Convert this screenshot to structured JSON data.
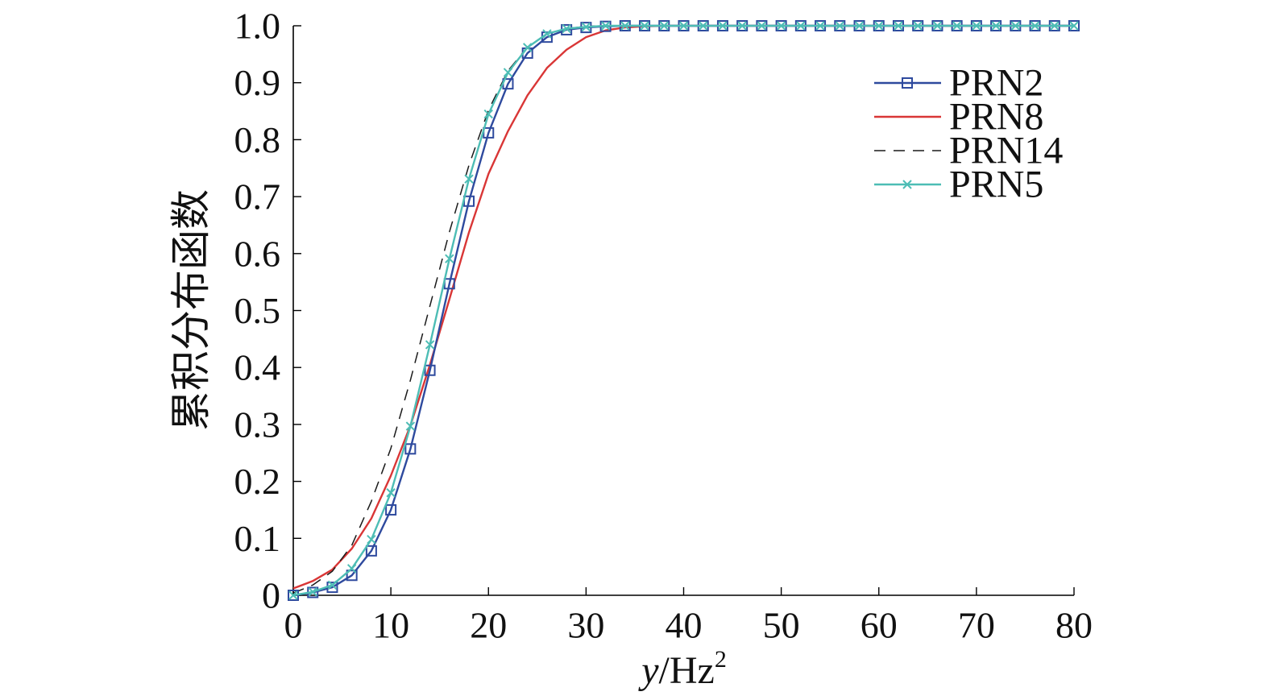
{
  "chart_data": {
    "type": "line",
    "title": "",
    "xlabel": {
      "variable": "y",
      "unit": "/Hz",
      "exponent": "2"
    },
    "ylabel": "累积分布函数",
    "xlim": [
      0,
      80
    ],
    "ylim": [
      0,
      1
    ],
    "grid": false,
    "xticks": [
      0,
      10,
      20,
      30,
      40,
      50,
      60,
      70,
      80
    ],
    "xtick_labels": [
      "0",
      "10",
      "20",
      "30",
      "40",
      "50",
      "60",
      "70",
      "80"
    ],
    "yticks": [
      0,
      0.1,
      0.2,
      0.3,
      0.4,
      0.5,
      0.6,
      0.7,
      0.8,
      0.9,
      1.0
    ],
    "ytick_labels": [
      "0",
      "0.1",
      "0.2",
      "0.3",
      "0.4",
      "0.5",
      "0.6",
      "0.7",
      "0.8",
      "0.9",
      "1.0"
    ],
    "x": [
      0,
      2,
      4,
      6,
      8,
      10,
      12,
      14,
      16,
      18,
      20,
      22,
      24,
      26,
      28,
      30,
      32,
      34,
      36,
      38,
      40,
      42,
      44,
      46,
      48,
      50,
      52,
      54,
      56,
      58,
      60,
      62,
      64,
      66,
      68,
      70,
      72,
      74,
      76,
      78,
      80
    ],
    "series": [
      {
        "name": "PRN2",
        "color": "#2e4a9e",
        "values": [
          0.0,
          0.005,
          0.014,
          0.035,
          0.078,
          0.15,
          0.257,
          0.395,
          0.547,
          0.692,
          0.812,
          0.898,
          0.952,
          0.98,
          0.993,
          0.997,
          0.999,
          1,
          1,
          1,
          1,
          1,
          1,
          1,
          1,
          1,
          1,
          1,
          1,
          1,
          1,
          1,
          1,
          1,
          1,
          1,
          1,
          1,
          1,
          1,
          1
        ]
      },
      {
        "name": "PRN8",
        "color": "#d93636",
        "values": [
          0.012,
          0.025,
          0.045,
          0.082,
          0.135,
          0.21,
          0.298,
          0.405,
          0.52,
          0.637,
          0.74,
          0.815,
          0.878,
          0.926,
          0.958,
          0.98,
          0.992,
          0.997,
          0.999,
          1,
          1,
          1,
          1,
          1,
          1,
          1,
          1,
          1,
          1,
          1,
          1,
          1,
          1,
          1,
          1,
          1,
          1,
          1,
          1,
          1,
          1
        ]
      },
      {
        "name": "PRN14",
        "color": "#1a1a1a",
        "values": [
          0.004,
          0.018,
          0.042,
          0.088,
          0.165,
          0.258,
          0.378,
          0.508,
          0.638,
          0.755,
          0.852,
          0.921,
          0.963,
          0.986,
          0.995,
          0.999,
          1,
          1,
          1,
          1,
          1,
          1,
          1,
          1,
          1,
          1,
          1,
          1,
          1,
          1,
          1,
          1,
          1,
          1,
          1,
          1,
          1,
          1,
          1,
          1,
          1
        ]
      },
      {
        "name": "PRN5",
        "color": "#4dbdb5",
        "values": [
          0.0,
          0.006,
          0.018,
          0.047,
          0.098,
          0.18,
          0.297,
          0.44,
          0.591,
          0.731,
          0.845,
          0.918,
          0.962,
          0.986,
          0.995,
          0.998,
          1,
          1,
          1,
          1,
          1,
          1,
          1,
          1,
          1,
          1,
          1,
          1,
          1,
          1,
          1,
          1,
          1,
          1,
          1,
          1,
          1,
          1,
          1,
          1,
          1
        ]
      }
    ]
  }
}
